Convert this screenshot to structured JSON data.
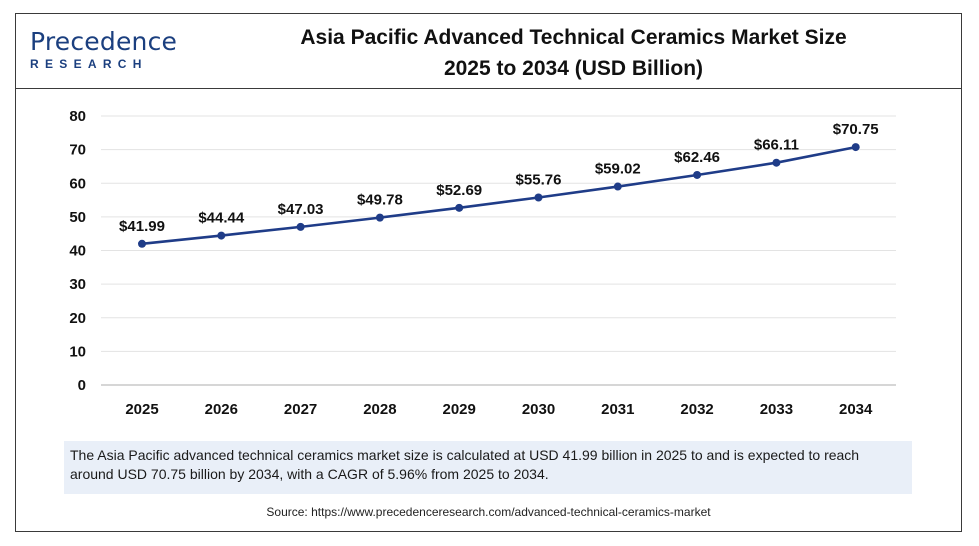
{
  "logo": {
    "top": "Precedence",
    "bottom": "RESEARCH"
  },
  "title_line1": "Asia Pacific Advanced Technical Ceramics Market Size",
  "title_line2": "2025 to 2034 (USD Billion)",
  "chart_data": {
    "type": "line",
    "title": "Asia Pacific Advanced Technical Ceramics Market Size 2025 to 2034 (USD Billion)",
    "x": [
      "2025",
      "2026",
      "2027",
      "2028",
      "2029",
      "2030",
      "2031",
      "2032",
      "2033",
      "2034"
    ],
    "series": [
      {
        "values": [
          41.99,
          44.44,
          47.03,
          49.78,
          52.69,
          55.76,
          59.02,
          62.46,
          66.11,
          70.75
        ]
      }
    ],
    "data_labels": [
      "$41.99",
      "$44.44",
      "$47.03",
      "$49.78",
      "$52.69",
      "$55.76",
      "$59.02",
      "$62.46",
      "$66.11",
      "$70.75"
    ],
    "ylim": [
      0,
      80
    ],
    "yticks": [
      0,
      10,
      20,
      30,
      40,
      50,
      60,
      70,
      80
    ],
    "xlabel": "",
    "ylabel": "",
    "grid": true,
    "legend": "none",
    "line_color": "#1f3c88"
  },
  "note": "The Asia Pacific advanced technical ceramics market size is calculated at USD 41.99 billion in 2025 to and is expected to reach around USD 70.75 billion by 2034, with a CAGR of 5.96% from 2025 to 2034.",
  "source": "Source: https://www.precedenceresearch.com/advanced-technical-ceramics-market"
}
